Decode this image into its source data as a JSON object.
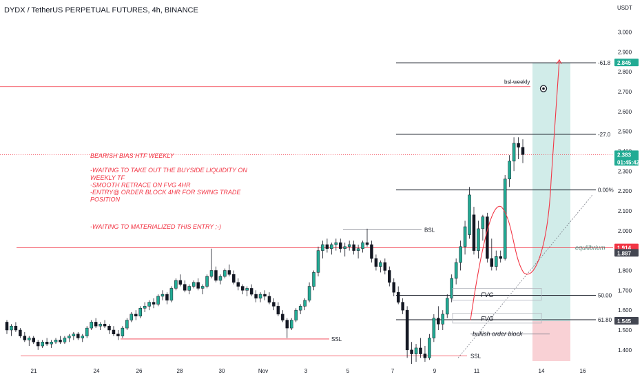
{
  "header": {
    "title": "DYDX / TetherUS PERPETUAL FUTURES, 4h, BINANCE"
  },
  "colors": {
    "up": "#22ab94",
    "down": "#131722",
    "red_line": "#f23645",
    "target_zone": "#b2dfdb",
    "stop_zone": "#f7c6ca",
    "tag_green": "#22ab94",
    "tag_red": "#f23645",
    "tag_dark": "#434651"
  },
  "chart_data": {
    "type": "candlestick",
    "y_axis": {
      "unit": "USDT",
      "ticks": [
        "3.000",
        "2.900",
        "2.800",
        "2.700",
        "2.600",
        "2.500",
        "2.400",
        "2.300",
        "2.200",
        "2.100",
        "2.000",
        "1.900",
        "1.800",
        "1.700",
        "1.600",
        "1.500",
        "1.400"
      ],
      "range": [
        1.33,
        3.05
      ]
    },
    "x_axis": {
      "ticks": [
        "21",
        "24",
        "26",
        "28",
        "30",
        "Nov",
        "3",
        "5",
        "7",
        "9",
        "11",
        "14",
        "16"
      ]
    },
    "price_tags": [
      {
        "label": "2.845",
        "value": 2.845,
        "color": "green"
      },
      {
        "label": "2.383",
        "value": 2.383,
        "color": "green",
        "sub": "01:45:42"
      },
      {
        "label": "1.914",
        "value": 1.914,
        "color": "red"
      },
      {
        "label": "1.887",
        "value": 1.887,
        "color": "dark"
      },
      {
        "label": "1.545",
        "value": 1.545,
        "color": "dark"
      }
    ],
    "fib_levels": [
      {
        "label": "-61.8",
        "value": 2.845
      },
      {
        "label": "-27.0",
        "value": 2.485
      },
      {
        "label": "0.00%",
        "value": 2.205
      },
      {
        "label": "50.00",
        "value": 1.675
      },
      {
        "label": "61.80",
        "value": 1.552
      }
    ],
    "horizontal_lines": [
      {
        "label": "bsl-weekly",
        "value": 2.725
      },
      {
        "label": "BSL",
        "value": 2.005
      },
      {
        "label": "equilibrium",
        "value": 1.914
      },
      {
        "label": "SSL",
        "value": 1.455
      },
      {
        "label": "SSL",
        "value": 1.37
      }
    ],
    "zones": [
      {
        "label": "FVG",
        "top": 1.71,
        "bottom": 1.65
      },
      {
        "label": "FVG",
        "top": 1.585,
        "bottom": 1.535
      },
      {
        "label": "bullish order block",
        "value": 1.48
      }
    ],
    "annotation": [
      "BEARISH BIAS HTF WEEKLY",
      "",
      "-WAITING TO TAKE OUT THE BUYSIDE  LIQUIDITY ON",
      " WEEKLY TF",
      "-SMOOTH RETRACE ON FVG 4HR",
      "-ENTRY@ ORDER BLOCK 4HR FOR SWING TRADE",
      " POSITION",
      "",
      "-WAITING TO MATERIALIZED THIS ENTRY ;-)"
    ],
    "ohlc": [
      [
        1.54,
        1.55,
        1.48,
        1.5
      ],
      [
        1.5,
        1.53,
        1.47,
        1.52
      ],
      [
        1.52,
        1.54,
        1.49,
        1.5
      ],
      [
        1.5,
        1.51,
        1.46,
        1.47
      ],
      [
        1.47,
        1.49,
        1.44,
        1.45
      ],
      [
        1.45,
        1.47,
        1.42,
        1.46
      ],
      [
        1.46,
        1.47,
        1.43,
        1.44
      ],
      [
        1.44,
        1.45,
        1.4,
        1.42
      ],
      [
        1.42,
        1.45,
        1.41,
        1.44
      ],
      [
        1.44,
        1.46,
        1.42,
        1.43
      ],
      [
        1.43,
        1.45,
        1.41,
        1.44
      ],
      [
        1.44,
        1.46,
        1.43,
        1.45
      ],
      [
        1.45,
        1.47,
        1.43,
        1.44
      ],
      [
        1.44,
        1.47,
        1.43,
        1.46
      ],
      [
        1.46,
        1.48,
        1.44,
        1.47
      ],
      [
        1.47,
        1.49,
        1.45,
        1.48
      ],
      [
        1.48,
        1.49,
        1.45,
        1.46
      ],
      [
        1.46,
        1.48,
        1.44,
        1.47
      ],
      [
        1.47,
        1.52,
        1.46,
        1.51
      ],
      [
        1.51,
        1.55,
        1.5,
        1.54
      ],
      [
        1.54,
        1.56,
        1.51,
        1.52
      ],
      [
        1.52,
        1.54,
        1.5,
        1.53
      ],
      [
        1.53,
        1.55,
        1.51,
        1.52
      ],
      [
        1.52,
        1.53,
        1.48,
        1.5
      ],
      [
        1.5,
        1.52,
        1.47,
        1.48
      ],
      [
        1.48,
        1.5,
        1.45,
        1.47
      ],
      [
        1.47,
        1.52,
        1.46,
        1.51
      ],
      [
        1.51,
        1.56,
        1.5,
        1.55
      ],
      [
        1.55,
        1.59,
        1.54,
        1.58
      ],
      [
        1.58,
        1.6,
        1.55,
        1.57
      ],
      [
        1.57,
        1.62,
        1.56,
        1.61
      ],
      [
        1.61,
        1.64,
        1.59,
        1.62
      ],
      [
        1.62,
        1.65,
        1.6,
        1.64
      ],
      [
        1.64,
        1.66,
        1.61,
        1.63
      ],
      [
        1.63,
        1.68,
        1.62,
        1.67
      ],
      [
        1.67,
        1.7,
        1.65,
        1.68
      ],
      [
        1.68,
        1.69,
        1.63,
        1.65
      ],
      [
        1.65,
        1.72,
        1.64,
        1.71
      ],
      [
        1.71,
        1.76,
        1.7,
        1.75
      ],
      [
        1.75,
        1.78,
        1.72,
        1.73
      ],
      [
        1.73,
        1.75,
        1.69,
        1.7
      ],
      [
        1.7,
        1.73,
        1.68,
        1.72
      ],
      [
        1.72,
        1.75,
        1.71,
        1.74
      ],
      [
        1.74,
        1.76,
        1.7,
        1.71
      ],
      [
        1.71,
        1.73,
        1.68,
        1.72
      ],
      [
        1.72,
        1.78,
        1.71,
        1.77
      ],
      [
        1.77,
        1.91,
        1.76,
        1.8
      ],
      [
        1.8,
        1.82,
        1.74,
        1.75
      ],
      [
        1.75,
        1.78,
        1.73,
        1.77
      ],
      [
        1.77,
        1.81,
        1.76,
        1.8
      ],
      [
        1.8,
        1.83,
        1.77,
        1.78
      ],
      [
        1.78,
        1.8,
        1.73,
        1.74
      ],
      [
        1.74,
        1.76,
        1.7,
        1.72
      ],
      [
        1.72,
        1.73,
        1.68,
        1.7
      ],
      [
        1.7,
        1.72,
        1.67,
        1.71
      ],
      [
        1.71,
        1.73,
        1.67,
        1.68
      ],
      [
        1.68,
        1.7,
        1.64,
        1.66
      ],
      [
        1.66,
        1.69,
        1.64,
        1.68
      ],
      [
        1.68,
        1.7,
        1.65,
        1.67
      ],
      [
        1.67,
        1.69,
        1.63,
        1.64
      ],
      [
        1.64,
        1.66,
        1.6,
        1.62
      ],
      [
        1.62,
        1.64,
        1.57,
        1.58
      ],
      [
        1.58,
        1.6,
        1.54,
        1.55
      ],
      [
        1.55,
        1.56,
        1.46,
        1.51
      ],
      [
        1.51,
        1.56,
        1.5,
        1.55
      ],
      [
        1.55,
        1.61,
        1.54,
        1.6
      ],
      [
        1.6,
        1.63,
        1.58,
        1.62
      ],
      [
        1.62,
        1.66,
        1.6,
        1.65
      ],
      [
        1.65,
        1.74,
        1.64,
        1.72
      ],
      [
        1.72,
        1.8,
        1.7,
        1.79
      ],
      [
        1.79,
        1.92,
        1.77,
        1.9
      ],
      [
        1.9,
        1.95,
        1.86,
        1.93
      ],
      [
        1.93,
        1.96,
        1.89,
        1.91
      ],
      [
        1.91,
        1.94,
        1.88,
        1.93
      ],
      [
        1.93,
        1.96,
        1.9,
        1.94
      ],
      [
        1.94,
        1.96,
        1.89,
        1.91
      ],
      [
        1.91,
        1.94,
        1.87,
        1.92
      ],
      [
        1.92,
        1.95,
        1.9,
        1.93
      ],
      [
        1.93,
        1.95,
        1.88,
        1.9
      ],
      [
        1.9,
        1.93,
        1.86,
        1.91
      ],
      [
        1.91,
        1.95,
        1.89,
        1.94
      ],
      [
        1.94,
        2.01,
        1.92,
        1.93
      ],
      [
        1.93,
        1.95,
        1.84,
        1.86
      ],
      [
        1.86,
        1.88,
        1.8,
        1.82
      ],
      [
        1.82,
        1.85,
        1.79,
        1.84
      ],
      [
        1.84,
        1.86,
        1.78,
        1.8
      ],
      [
        1.8,
        1.82,
        1.72,
        1.74
      ],
      [
        1.74,
        1.76,
        1.67,
        1.69
      ],
      [
        1.69,
        1.72,
        1.63,
        1.64
      ],
      [
        1.64,
        1.66,
        1.58,
        1.6
      ],
      [
        1.6,
        1.62,
        1.36,
        1.4
      ],
      [
        1.4,
        1.44,
        1.33,
        1.38
      ],
      [
        1.38,
        1.43,
        1.34,
        1.41
      ],
      [
        1.41,
        1.46,
        1.36,
        1.38
      ],
      [
        1.38,
        1.42,
        1.34,
        1.36
      ],
      [
        1.36,
        1.48,
        1.35,
        1.46
      ],
      [
        1.46,
        1.58,
        1.44,
        1.56
      ],
      [
        1.56,
        1.62,
        1.5,
        1.53
      ],
      [
        1.53,
        1.6,
        1.5,
        1.58
      ],
      [
        1.58,
        1.68,
        1.56,
        1.66
      ],
      [
        1.66,
        1.78,
        1.64,
        1.76
      ],
      [
        1.76,
        1.86,
        1.73,
        1.84
      ],
      [
        1.84,
        1.95,
        1.8,
        1.92
      ],
      [
        1.92,
        2.05,
        1.88,
        2.02
      ],
      [
        1.98,
        2.22,
        1.96,
        2.18
      ],
      [
        2.08,
        2.12,
        1.88,
        1.9
      ],
      [
        1.9,
        2.05,
        1.86,
        2.01
      ],
      [
        2.01,
        2.08,
        1.95,
        2.07
      ],
      [
        2.07,
        2.09,
        1.84,
        1.86
      ],
      [
        1.86,
        1.96,
        1.8,
        1.82
      ],
      [
        1.82,
        1.9,
        1.8,
        1.87
      ],
      [
        1.87,
        1.9,
        1.84,
        1.86
      ],
      [
        1.86,
        2.28,
        1.85,
        2.26
      ],
      [
        2.26,
        2.38,
        2.22,
        2.35
      ],
      [
        2.35,
        2.47,
        2.3,
        2.44
      ],
      [
        2.44,
        2.47,
        2.36,
        2.42
      ],
      [
        2.42,
        2.46,
        2.34,
        2.383
      ]
    ]
  }
}
